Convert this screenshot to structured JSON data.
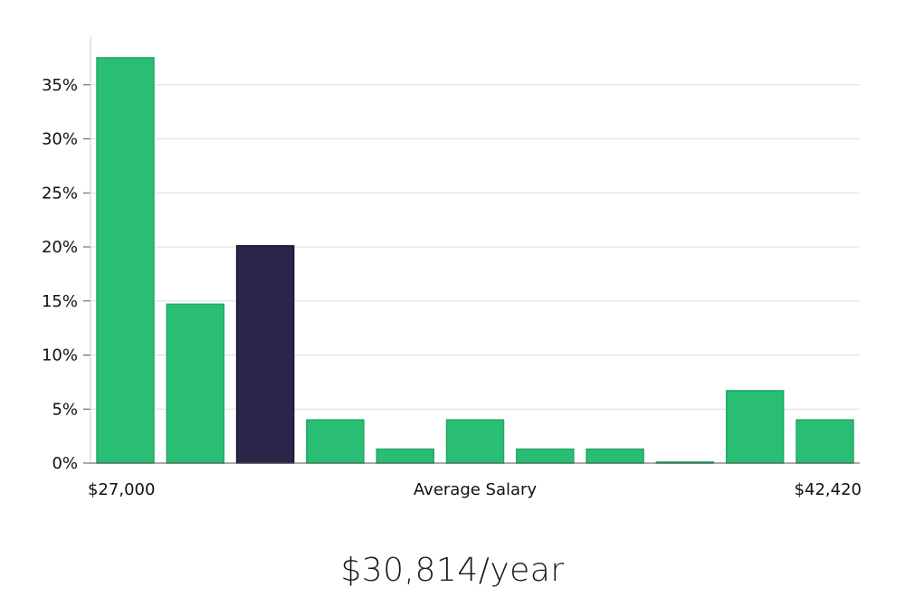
{
  "chart_data": {
    "type": "bar",
    "xlabel": "Average Salary",
    "x_min_label": "$27,000",
    "x_max_label": "$42,420",
    "y_ticks": [
      "0%",
      "5%",
      "10%",
      "15%",
      "20%",
      "25%",
      "30%",
      "35%"
    ],
    "ylim": [
      0,
      39
    ],
    "grid": true,
    "values": [
      37.5,
      14.7,
      20.1,
      4.0,
      1.3,
      4.0,
      1.3,
      1.3,
      0.1,
      6.7,
      4.0
    ],
    "highlight_index": 2,
    "colors": {
      "bar": "#2abd74",
      "highlight": "#29264a",
      "grid": "#dddddd",
      "axis": "#cccccc"
    }
  },
  "summary": {
    "salary_text": "$30,814/year"
  }
}
